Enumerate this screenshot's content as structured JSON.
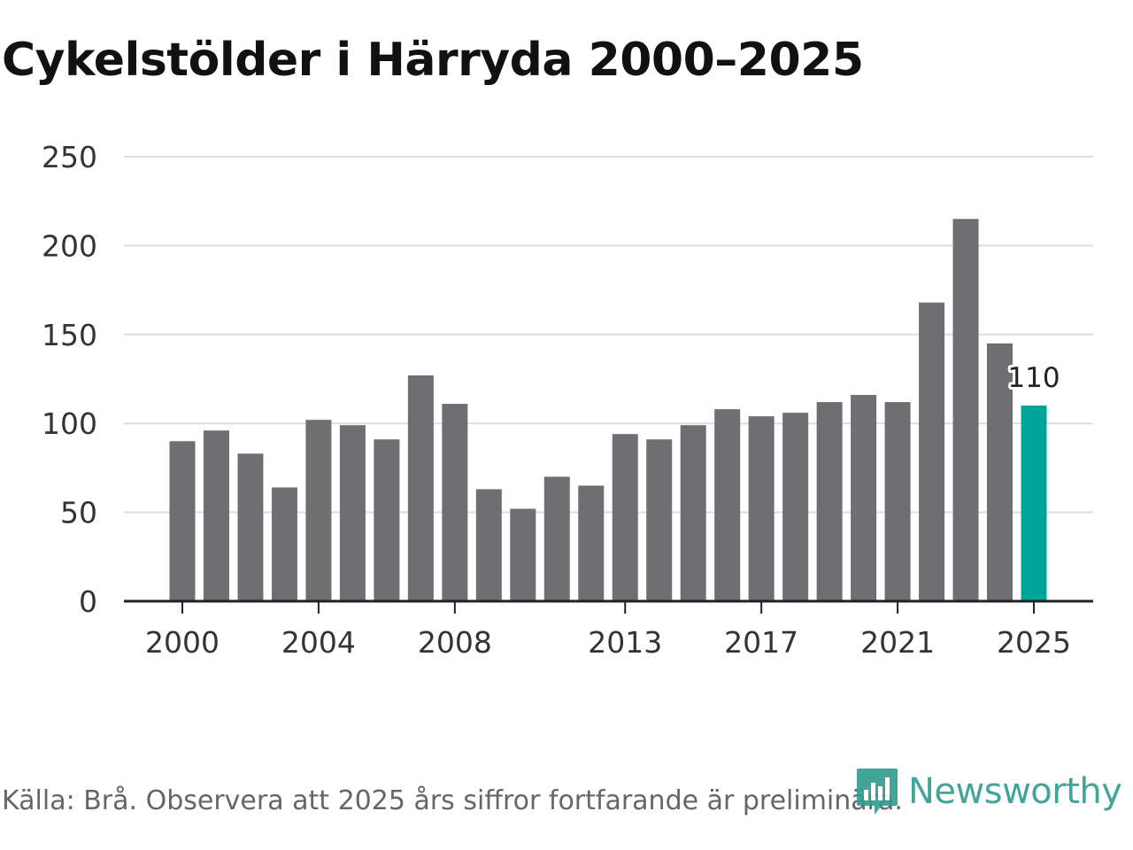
{
  "chart_data": {
    "type": "bar",
    "title": "Cykelstölder i Härryda 2000–2025",
    "xlabel": "",
    "ylabel": "",
    "ylim": [
      0,
      250
    ],
    "yticks": [
      0,
      50,
      100,
      150,
      200,
      250
    ],
    "grid": true,
    "categories": [
      2000,
      2001,
      2002,
      2003,
      2004,
      2005,
      2006,
      2007,
      2008,
      2009,
      2010,
      2011,
      2012,
      2013,
      2014,
      2015,
      2016,
      2017,
      2018,
      2019,
      2020,
      2021,
      2022,
      2023,
      2024,
      2025
    ],
    "xtick_labels": [
      "2000",
      "2004",
      "2008",
      "2013",
      "2017",
      "2021",
      "2025"
    ],
    "values": [
      90,
      96,
      83,
      64,
      102,
      99,
      91,
      127,
      111,
      63,
      52,
      70,
      65,
      94,
      91,
      99,
      108,
      104,
      106,
      112,
      116,
      112,
      168,
      215,
      145,
      110
    ],
    "highlight_category": 2025,
    "highlight_label": "110",
    "colors": {
      "bar": "#6e6e73",
      "highlight": "#00a499",
      "grid": "#dddddd",
      "axis": "#222222"
    }
  },
  "footer": {
    "source": "Källa: Brå. Observera att 2025 års siffror fortfarande är preliminära."
  },
  "brand": {
    "name": "Newsworthy",
    "icon": "newsworthy-logo-icon",
    "color": "#2f9c8e"
  }
}
